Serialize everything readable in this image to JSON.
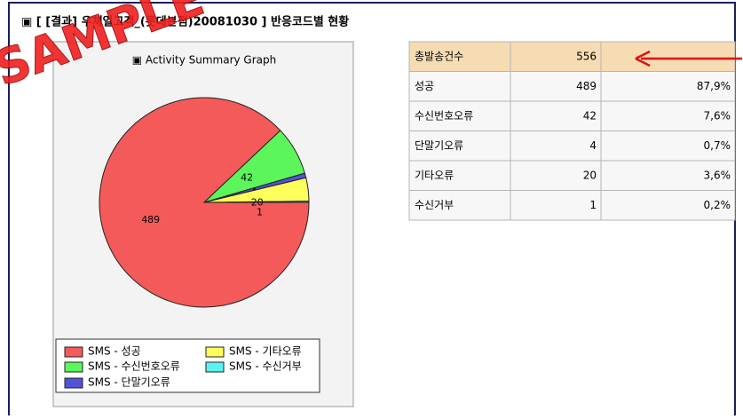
{
  "header": {
    "title": "▣ [ [결과] 우체일고객_(롯데본점)20081030 ] 반응코드별 현황"
  },
  "watermark": "SAMPLE",
  "chart_data": {
    "type": "pie",
    "title": "▣ Activity Summary Graph",
    "series": [
      {
        "name": "SMS - 성공",
        "color": "#f45a5a",
        "values": [
          489
        ]
      },
      {
        "name": "SMS - 수신번호오류",
        "color": "#5cf55c",
        "values": [
          42
        ]
      },
      {
        "name": "SMS - 단말기오류",
        "color": "#5252d8",
        "values": [
          4
        ]
      },
      {
        "name": "SMS - 기타오류",
        "color": "#ffff5c",
        "values": [
          20
        ]
      },
      {
        "name": "SMS - 수신거부",
        "color": "#5cf2f2",
        "values": [
          1
        ]
      }
    ]
  },
  "table": {
    "rows": [
      [
        "총발송건수",
        "556"
      ],
      [
        "성공",
        "489",
        "87,9%"
      ],
      [
        "수신번호오류",
        "42",
        "7,6%"
      ],
      [
        "단말기오류",
        "4",
        "0,7%"
      ],
      [
        "기타오류",
        "20",
        "3,6%"
      ],
      [
        "수신거부",
        "1",
        "0,2%"
      ]
    ]
  }
}
